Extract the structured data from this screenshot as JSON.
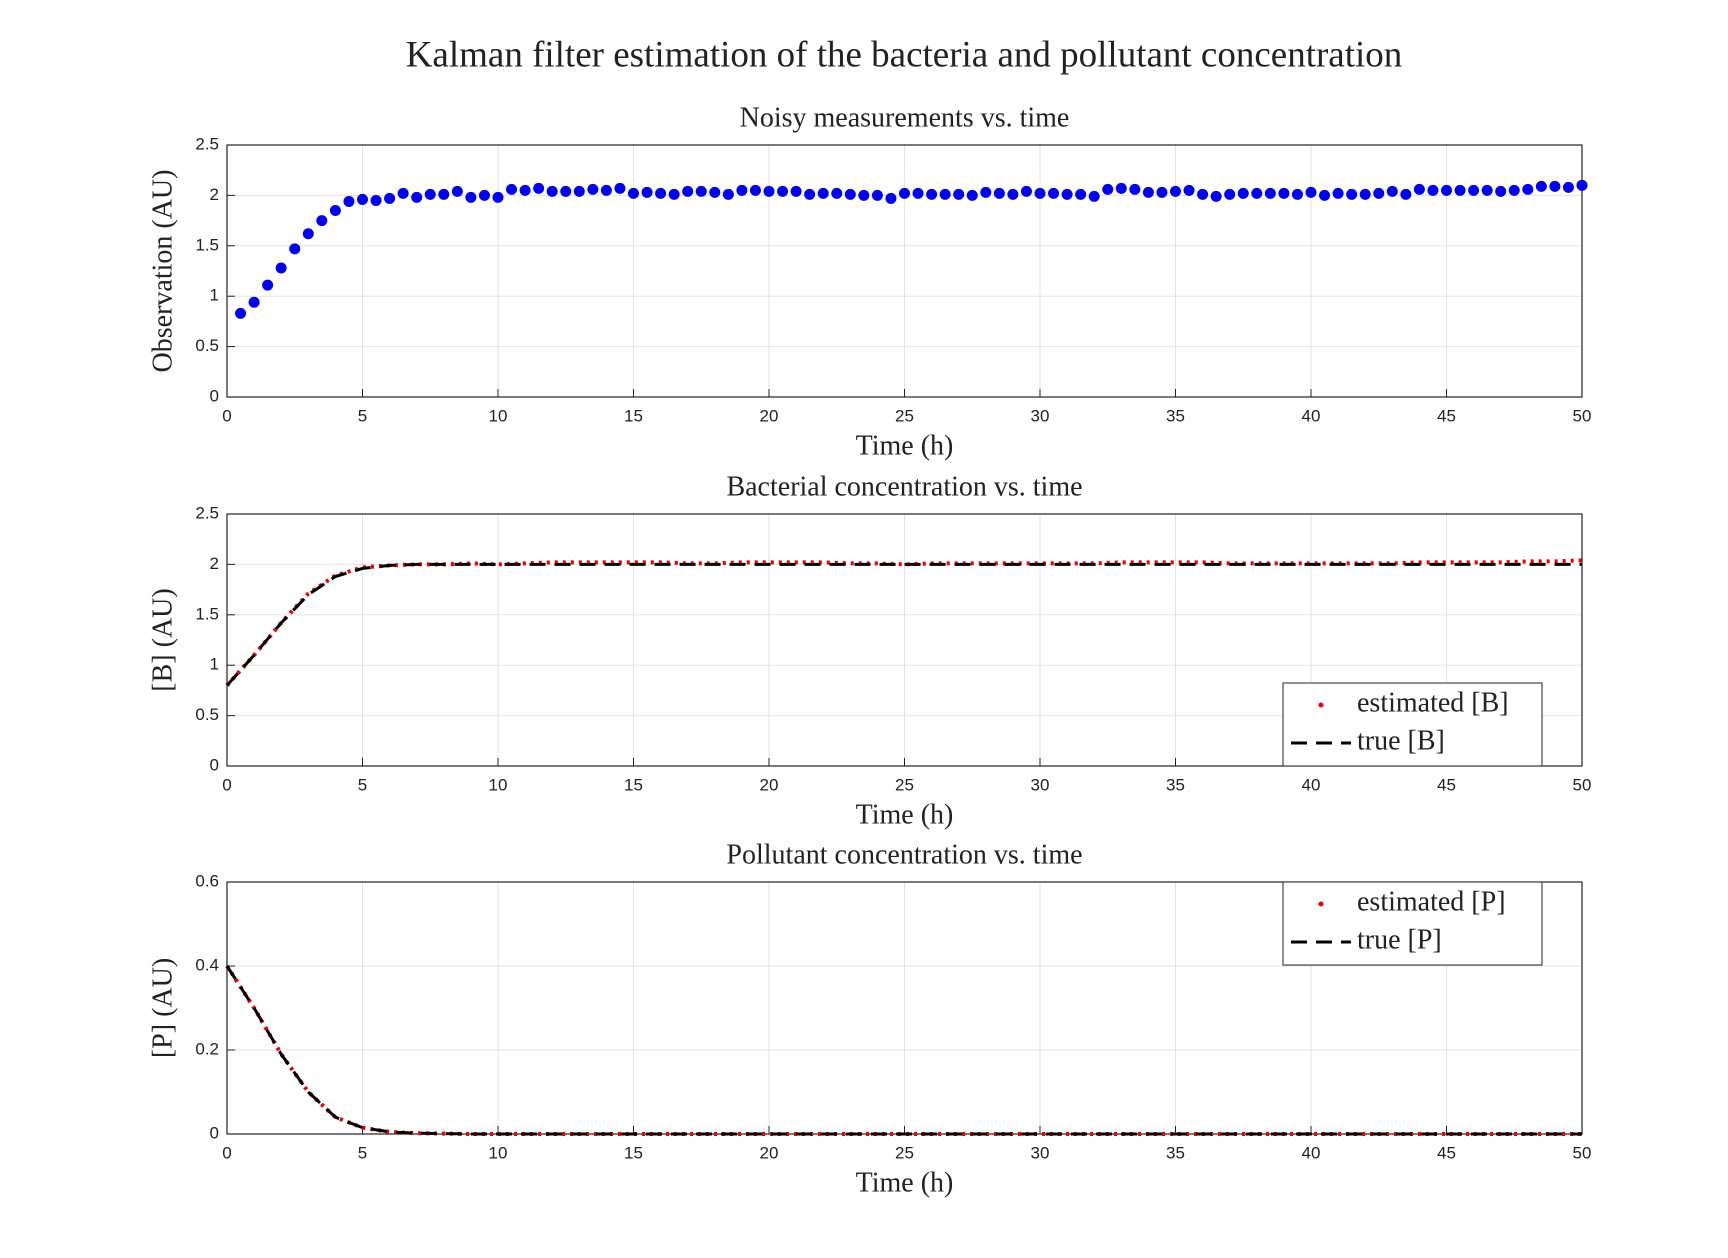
{
  "title": "Kalman filter estimation of the bacteria and pollutant concentration",
  "chart_data": [
    {
      "type": "scatter",
      "title": "Noisy measurements vs. time",
      "xlabel": "Time (h)",
      "ylabel": "Observation (AU)",
      "x": [
        0.5,
        1,
        1.5,
        2,
        2.5,
        3,
        3.5,
        4,
        4.5,
        5,
        5.5,
        6,
        6.5,
        7,
        7.5,
        8,
        8.5,
        9,
        9.5,
        10,
        10.5,
        11,
        11.5,
        12,
        12.5,
        13,
        13.5,
        14,
        14.5,
        15,
        15.5,
        16,
        16.5,
        17,
        17.5,
        18,
        18.5,
        19,
        19.5,
        20,
        20.5,
        21,
        21.5,
        22,
        22.5,
        23,
        23.5,
        24,
        24.5,
        25,
        25.5,
        26,
        26.5,
        27,
        27.5,
        28,
        28.5,
        29,
        29.5,
        30,
        30.5,
        31,
        31.5,
        32,
        32.5,
        33,
        33.5,
        34,
        34.5,
        35,
        35.5,
        36,
        36.5,
        37,
        37.5,
        38,
        38.5,
        39,
        39.5,
        40,
        40.5,
        41,
        41.5,
        42,
        42.5,
        43,
        43.5,
        44,
        44.5,
        45,
        45.5,
        46,
        46.5,
        47,
        47.5,
        48,
        48.5,
        49,
        49.5,
        50
      ],
      "values": [
        0.83,
        0.94,
        1.11,
        1.28,
        1.47,
        1.62,
        1.75,
        1.85,
        1.94,
        1.96,
        1.95,
        1.97,
        2.02,
        1.98,
        2.01,
        2.01,
        2.04,
        1.98,
        2.0,
        1.98,
        2.06,
        2.05,
        2.07,
        2.04,
        2.04,
        2.04,
        2.06,
        2.05,
        2.07,
        2.02,
        2.03,
        2.02,
        2.01,
        2.04,
        2.04,
        2.03,
        2.01,
        2.05,
        2.05,
        2.04,
        2.04,
        2.04,
        2.01,
        2.02,
        2.02,
        2.01,
        2.0,
        2.0,
        1.97,
        2.02,
        2.02,
        2.01,
        2.01,
        2.01,
        2.0,
        2.03,
        2.02,
        2.01,
        2.04,
        2.02,
        2.02,
        2.01,
        2.01,
        1.99,
        2.06,
        2.07,
        2.06,
        2.03,
        2.03,
        2.04,
        2.05,
        2.01,
        1.99,
        2.01,
        2.02,
        2.02,
        2.02,
        2.02,
        2.01,
        2.03,
        2.0,
        2.02,
        2.01,
        2.01,
        2.02,
        2.04,
        2.01,
        2.06,
        2.05,
        2.05,
        2.05,
        2.05,
        2.05,
        2.04,
        2.05,
        2.06,
        2.09,
        2.09,
        2.08,
        2.1
      ],
      "color": "#0000ee",
      "xlim": [
        0,
        50
      ],
      "ylim": [
        0,
        2.5
      ],
      "xticks": [
        0,
        5,
        10,
        15,
        20,
        25,
        30,
        35,
        40,
        45,
        50
      ],
      "yticks": [
        0,
        0.5,
        1,
        1.5,
        2,
        2.5
      ],
      "grid": true
    },
    {
      "type": "line",
      "title": "Bacterial concentration vs. time",
      "xlabel": "Time (h)",
      "ylabel": "[B] (AU)",
      "x": [
        0,
        1,
        2,
        3,
        4,
        5,
        6,
        7,
        8,
        9,
        10,
        11,
        12,
        13,
        14,
        15,
        16,
        17,
        18,
        19,
        20,
        21,
        22,
        23,
        24,
        25,
        26,
        27,
        28,
        29,
        30,
        31,
        32,
        33,
        34,
        35,
        36,
        37,
        38,
        39,
        40,
        41,
        42,
        43,
        44,
        45,
        46,
        47,
        48,
        49,
        50
      ],
      "series": [
        {
          "name": "estimated [B]",
          "color": "#ee0000",
          "linestyle": "dotted",
          "values": [
            0.8,
            1.1,
            1.42,
            1.71,
            1.89,
            1.97,
            1.99,
            2.0,
            2.0,
            2.01,
            2.0,
            2.01,
            2.02,
            2.02,
            2.02,
            2.02,
            2.02,
            2.01,
            2.01,
            2.02,
            2.02,
            2.02,
            2.02,
            2.01,
            2.01,
            2.0,
            2.01,
            2.01,
            2.01,
            2.01,
            2.01,
            2.01,
            2.01,
            2.02,
            2.02,
            2.02,
            2.02,
            2.01,
            2.01,
            2.01,
            2.01,
            2.01,
            2.01,
            2.01,
            2.02,
            2.02,
            2.02,
            2.02,
            2.03,
            2.03,
            2.04
          ]
        },
        {
          "name": "true [B]",
          "color": "#000000",
          "linestyle": "dashed",
          "values": [
            0.8,
            1.1,
            1.42,
            1.7,
            1.88,
            1.96,
            1.99,
            2.0,
            2.0,
            2.0,
            2.0,
            2.0,
            2.0,
            2.0,
            2.0,
            2.0,
            2.0,
            2.0,
            2.0,
            2.0,
            2.0,
            2.0,
            2.0,
            2.0,
            2.0,
            2.0,
            2.0,
            2.0,
            2.0,
            2.0,
            2.0,
            2.0,
            2.0,
            2.0,
            2.0,
            2.0,
            2.0,
            2.0,
            2.0,
            2.0,
            2.0,
            2.0,
            2.0,
            2.0,
            2.0,
            2.0,
            2.0,
            2.0,
            2.0,
            2.0,
            2.0
          ]
        }
      ],
      "xlim": [
        0,
        50
      ],
      "ylim": [
        0,
        2.5
      ],
      "xticks": [
        0,
        5,
        10,
        15,
        20,
        25,
        30,
        35,
        40,
        45,
        50
      ],
      "yticks": [
        0,
        0.5,
        1,
        1.5,
        2,
        2.5
      ],
      "grid": true,
      "legend": "southeast"
    },
    {
      "type": "line",
      "title": "Pollutant concentration vs. time",
      "xlabel": "Time (h)",
      "ylabel": "[P] (AU)",
      "x": [
        0,
        1,
        2,
        3,
        4,
        5,
        6,
        7,
        8,
        9,
        10,
        11,
        12,
        13,
        14,
        15,
        16,
        17,
        18,
        19,
        20,
        21,
        22,
        23,
        24,
        25,
        26,
        27,
        28,
        29,
        30,
        31,
        32,
        33,
        34,
        35,
        36,
        37,
        38,
        39,
        40,
        41,
        42,
        43,
        44,
        45,
        46,
        47,
        48,
        49,
        50
      ],
      "series": [
        {
          "name": "estimated [P]",
          "color": "#ee0000",
          "linestyle": "dotted",
          "values": [
            0.4,
            0.3,
            0.19,
            0.1,
            0.04,
            0.015,
            0.005,
            0.002,
            0.001,
            0,
            0,
            0,
            0,
            0,
            0,
            0,
            0,
            0,
            0,
            0,
            0,
            0,
            0,
            0,
            0,
            0,
            0,
            0,
            0,
            0,
            0,
            0,
            0,
            0,
            0,
            0,
            0,
            0,
            0,
            0,
            0,
            0,
            0,
            0,
            0,
            0,
            0,
            0,
            0,
            0,
            0
          ]
        },
        {
          "name": "true [P]",
          "color": "#000000",
          "linestyle": "dashed",
          "values": [
            0.4,
            0.3,
            0.19,
            0.1,
            0.04,
            0.015,
            0.005,
            0.002,
            0.001,
            0,
            0,
            0,
            0,
            0,
            0,
            0,
            0,
            0,
            0,
            0,
            0,
            0,
            0,
            0,
            0,
            0,
            0,
            0,
            0,
            0,
            0,
            0,
            0,
            0,
            0,
            0,
            0,
            0,
            0,
            0,
            0,
            0,
            0,
            0,
            0,
            0,
            0,
            0,
            0,
            0,
            0
          ]
        }
      ],
      "xlim": [
        0,
        50
      ],
      "ylim": [
        0,
        0.6
      ],
      "xticks": [
        0,
        5,
        10,
        15,
        20,
        25,
        30,
        35,
        40,
        45,
        50
      ],
      "yticks": [
        0,
        0.2,
        0.4,
        0.6
      ],
      "grid": true,
      "legend": "northeast"
    }
  ]
}
